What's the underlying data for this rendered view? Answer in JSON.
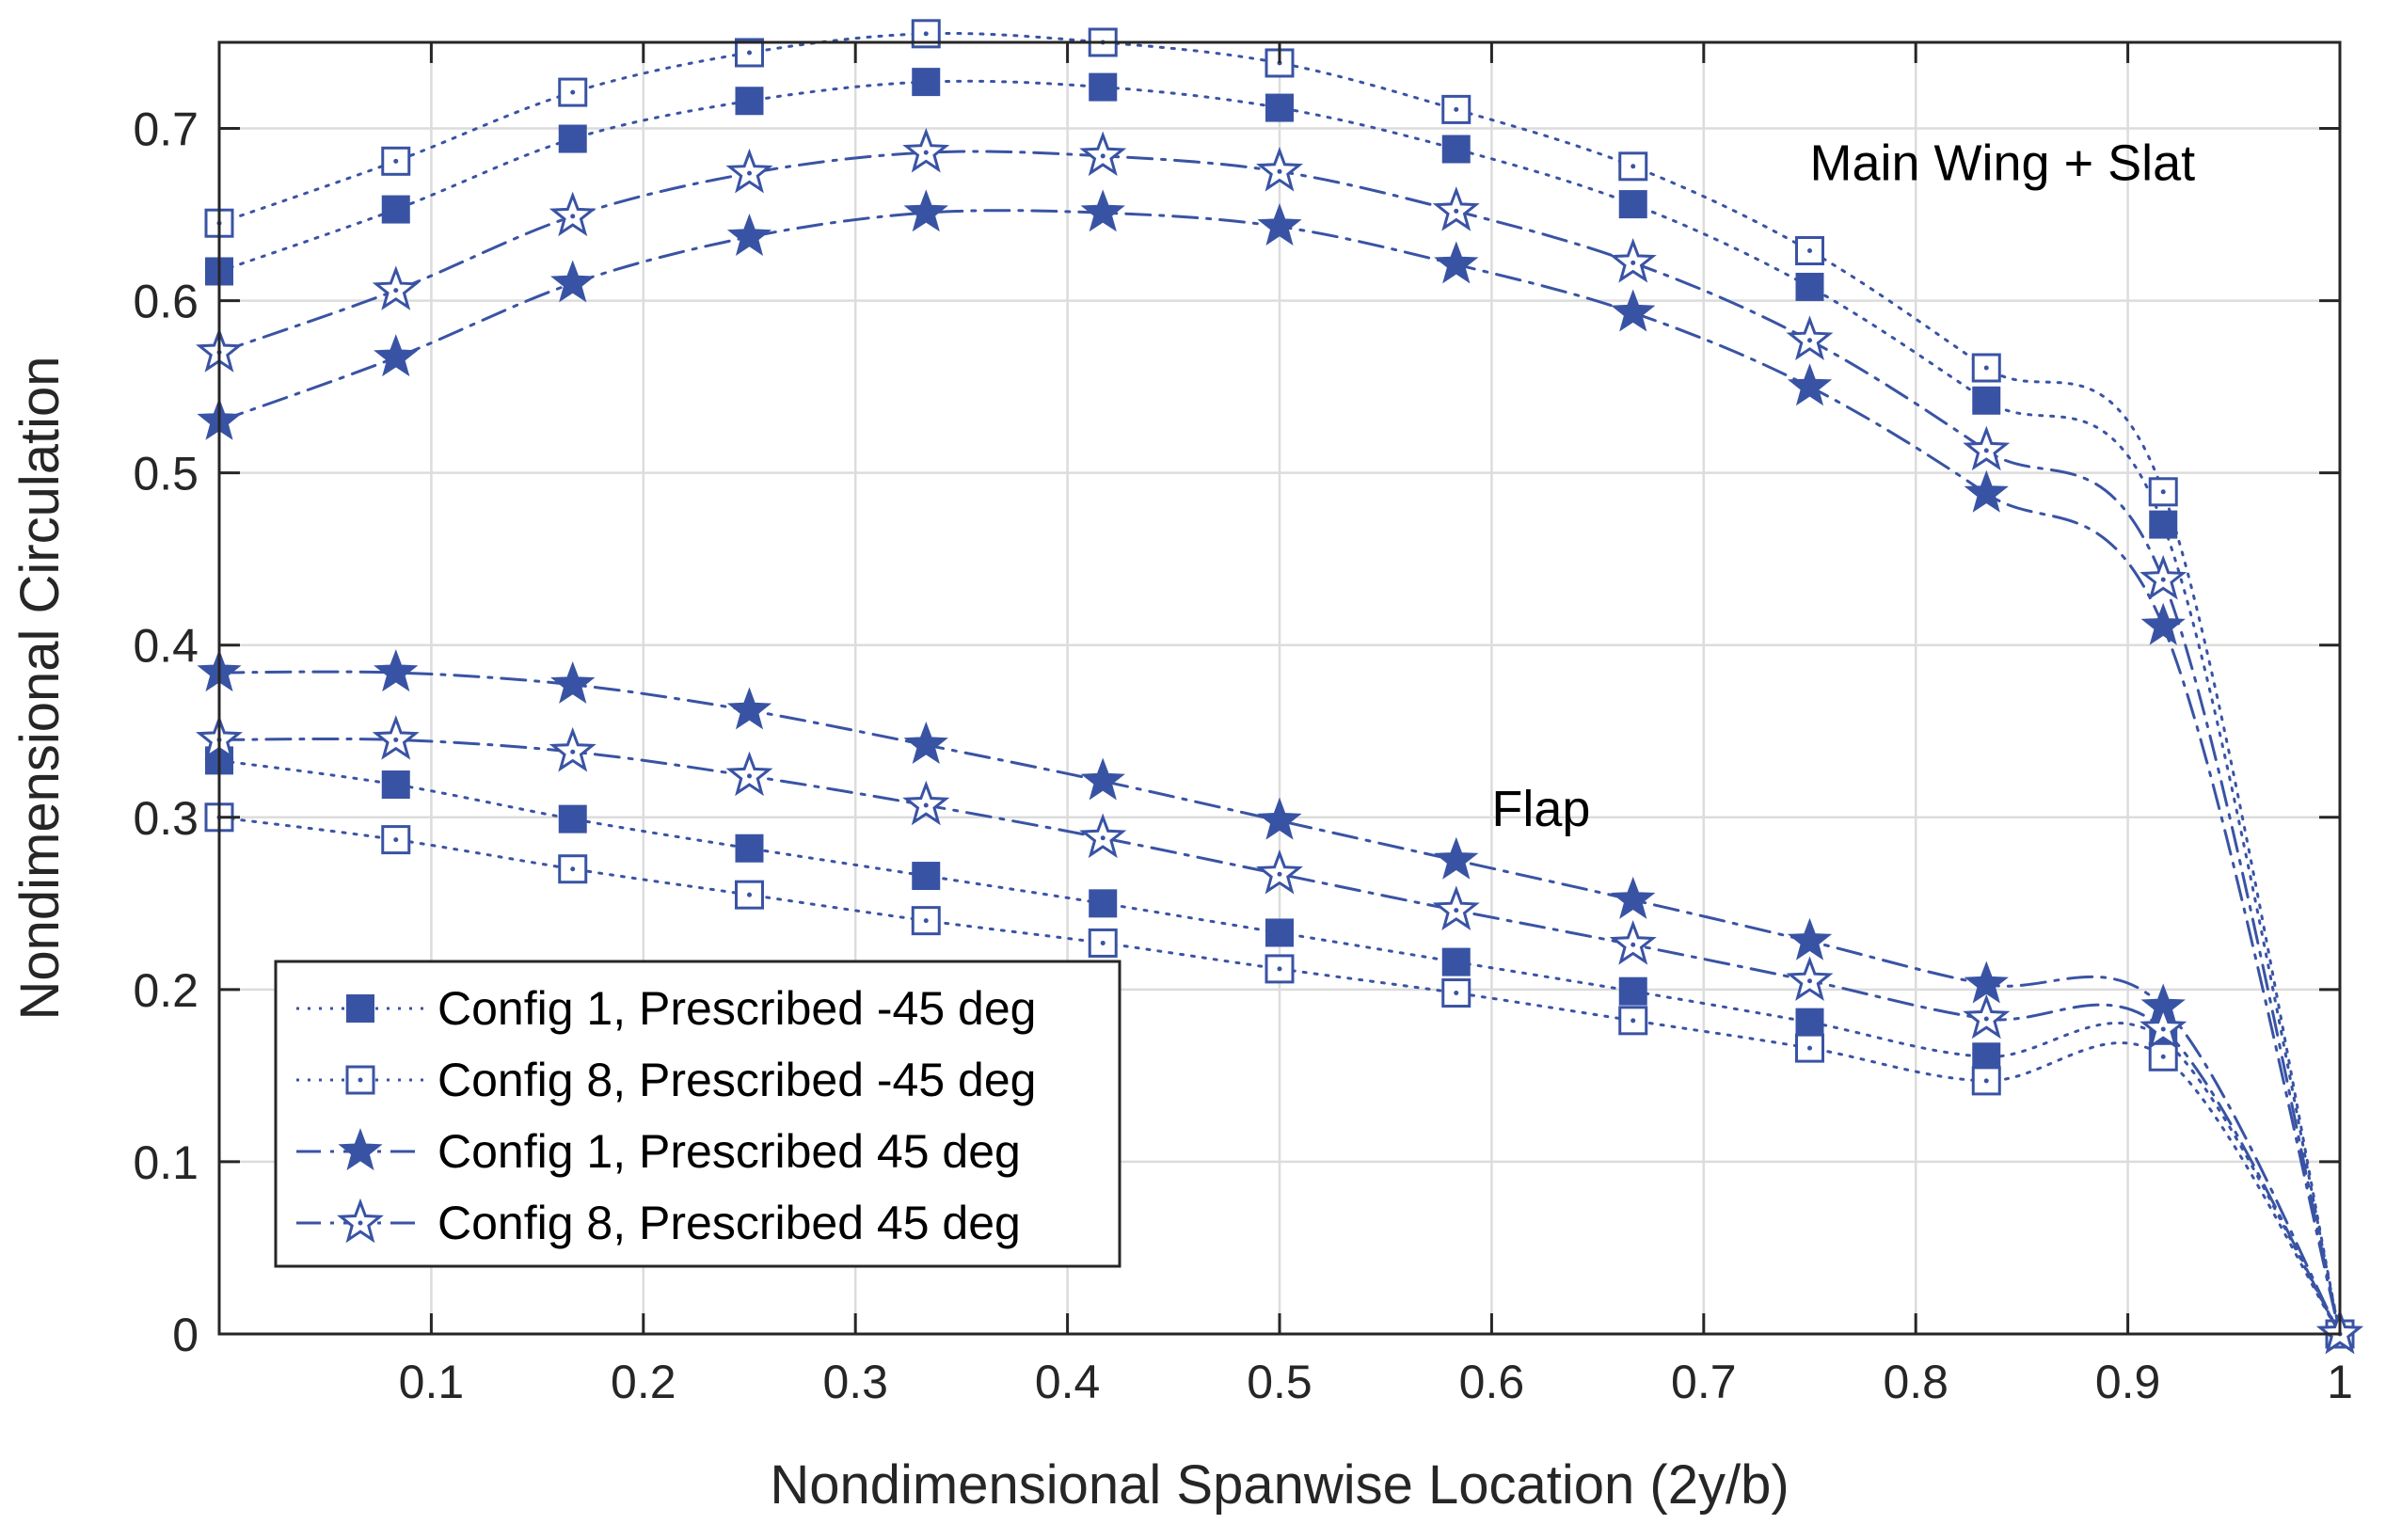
{
  "chart_data": {
    "type": "line",
    "title": "",
    "xlabel": "Nondimensional Spanwise Location (2y/b)",
    "ylabel": "Nondimensional Circulation",
    "xlim": [
      0,
      1
    ],
    "ylim": [
      0,
      0.75
    ],
    "x_ticks": [
      0.1,
      0.2,
      0.3,
      0.4,
      0.5,
      0.6,
      0.7,
      0.8,
      0.9,
      1
    ],
    "y_ticks": [
      0,
      0.1,
      0.2,
      0.3,
      0.4,
      0.5,
      0.6,
      0.7
    ],
    "x_tick_labels": [
      "0.1",
      "0.2",
      "0.3",
      "0.4",
      "0.5",
      "0.6",
      "0.7",
      "0.8",
      "0.9",
      "1"
    ],
    "y_tick_labels": [
      "0",
      "0.1",
      "0.2",
      "0.3",
      "0.4",
      "0.5",
      "0.6",
      "0.7"
    ],
    "grid": true,
    "legend_position": "bottom-left",
    "series_color": "#3953a4",
    "annotations": [
      {
        "text": "Main Wing + Slat",
        "x": 0.75,
        "y": 0.67
      },
      {
        "text": "Flap",
        "x": 0.6,
        "y": 0.295
      }
    ],
    "x": [
      0.0,
      0.0833,
      0.1667,
      0.25,
      0.3333,
      0.4167,
      0.5,
      0.5833,
      0.6667,
      0.75,
      0.8333,
      0.9167,
      1.0
    ],
    "series": [
      {
        "name": "Config 1, Prescribed -45 deg",
        "group": "Main Wing + Slat",
        "marker": "square-filled",
        "dash": "dotted",
        "legend": true,
        "values": [
          0.617,
          0.653,
          0.694,
          0.716,
          0.727,
          0.724,
          0.712,
          0.688,
          0.656,
          0.608,
          0.542,
          0.47,
          0.0
        ]
      },
      {
        "name": "Config 8, Prescribed -45 deg",
        "group": "Main Wing + Slat",
        "marker": "square-open",
        "dash": "dotted",
        "legend": true,
        "values": [
          0.645,
          0.681,
          0.721,
          0.744,
          0.755,
          0.75,
          0.738,
          0.711,
          0.678,
          0.629,
          0.561,
          0.489,
          0.0
        ]
      },
      {
        "name": "Config 1, Prescribed 45 deg",
        "group": "Main Wing + Slat",
        "marker": "star-filled",
        "dash": "dashdot",
        "legend": true,
        "values": [
          0.53,
          0.567,
          0.61,
          0.637,
          0.651,
          0.651,
          0.643,
          0.621,
          0.593,
          0.55,
          0.488,
          0.411,
          0.0
        ]
      },
      {
        "name": "Config 8, Prescribed 45 deg",
        "group": "Main Wing + Slat",
        "marker": "star-open",
        "dash": "dashdot",
        "legend": true,
        "values": [
          0.57,
          0.606,
          0.649,
          0.674,
          0.686,
          0.684,
          0.675,
          0.652,
          0.622,
          0.577,
          0.513,
          0.438,
          0.0
        ]
      },
      {
        "name": "Config 1, Prescribed -45 deg",
        "group": "Flap",
        "marker": "square-filled",
        "dash": "dotted",
        "legend": false,
        "values": [
          0.333,
          0.319,
          0.299,
          0.282,
          0.266,
          0.25,
          0.233,
          0.216,
          0.199,
          0.181,
          0.161,
          0.171,
          0.0
        ]
      },
      {
        "name": "Config 8, Prescribed -45 deg",
        "group": "Flap",
        "marker": "square-open",
        "dash": "dotted",
        "legend": false,
        "values": [
          0.3,
          0.287,
          0.27,
          0.255,
          0.24,
          0.227,
          0.212,
          0.198,
          0.182,
          0.166,
          0.147,
          0.161,
          0.0
        ]
      },
      {
        "name": "Config 1, Prescribed 45 deg",
        "group": "Flap",
        "marker": "star-filled",
        "dash": "dashdot",
        "legend": false,
        "values": [
          0.384,
          0.384,
          0.377,
          0.362,
          0.342,
          0.321,
          0.298,
          0.275,
          0.252,
          0.228,
          0.203,
          0.19,
          0.0
        ]
      },
      {
        "name": "Config 8, Prescribed 45 deg",
        "group": "Flap",
        "marker": "star-open",
        "dash": "dashdot",
        "legend": false,
        "values": [
          0.345,
          0.345,
          0.338,
          0.324,
          0.307,
          0.288,
          0.267,
          0.246,
          0.226,
          0.205,
          0.183,
          0.177,
          0.0
        ]
      }
    ]
  }
}
